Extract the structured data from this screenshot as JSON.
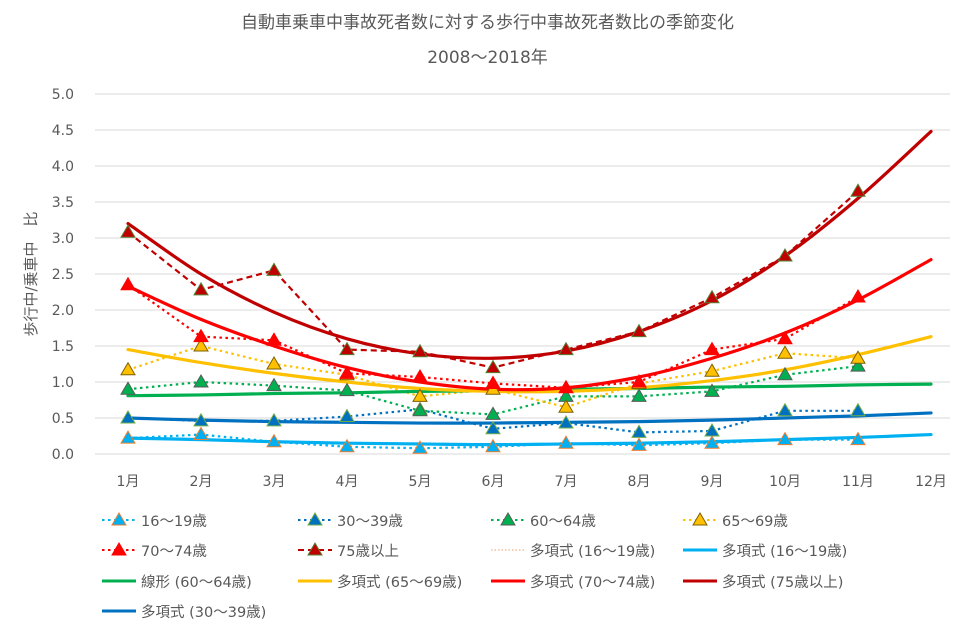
{
  "chart_data": {
    "type": "line",
    "title": "自動車乗車中事故死者数に対する歩行中事故死者数比の季節変化",
    "subtitle": "2008～2018年",
    "xlabel": "",
    "ylabel": "歩行中/乗車中　比",
    "categories": [
      "1月",
      "2月",
      "3月",
      "4月",
      "5月",
      "6月",
      "7月",
      "8月",
      "9月",
      "10月",
      "11月",
      "12月"
    ],
    "ylim": [
      0,
      5
    ],
    "yticks": [
      "0.0",
      "0.5",
      "1.0",
      "1.5",
      "2.0",
      "2.5",
      "3.0",
      "3.5",
      "4.0",
      "4.5",
      "5.0"
    ],
    "grid": true,
    "legend_position": "bottom",
    "series": [
      {
        "name": "16～19歳",
        "color": "#00b0f0",
        "marker_fill": "#00b0f0",
        "marker_edge": "#ed7d31",
        "style": "dotted",
        "values": [
          0.22,
          0.27,
          0.17,
          0.1,
          0.08,
          0.1,
          0.15,
          0.12,
          0.15,
          0.2,
          0.2,
          null
        ]
      },
      {
        "name": "30～39歳",
        "color": "#0070c0",
        "marker_fill": "#0070c0",
        "marker_edge": "#70ad47",
        "style": "dotted",
        "values": [
          0.5,
          0.46,
          0.46,
          0.52,
          0.62,
          0.35,
          0.43,
          0.3,
          0.32,
          0.6,
          0.6,
          null
        ]
      },
      {
        "name": "60～64歳",
        "color": "#00b050",
        "marker_fill": "#00b050",
        "marker_edge": "#5a5a5a",
        "style": "dotted",
        "values": [
          0.9,
          1.0,
          0.95,
          0.88,
          0.6,
          0.55,
          0.8,
          0.8,
          0.87,
          1.1,
          1.22,
          null
        ]
      },
      {
        "name": "65～69歳",
        "color": "#ffc000",
        "marker_fill": "#ffc000",
        "marker_edge": "#7f6000",
        "style": "dotted",
        "values": [
          1.17,
          1.5,
          1.25,
          1.1,
          0.8,
          0.9,
          0.65,
          0.98,
          1.15,
          1.4,
          1.33,
          null
        ]
      },
      {
        "name": "70～74歳",
        "color": "#ff0000",
        "marker_fill": "#ff0000",
        "marker_edge": "#ff0000",
        "style": "dotted",
        "values": [
          2.35,
          1.63,
          1.58,
          1.12,
          1.07,
          0.98,
          0.92,
          1.0,
          1.45,
          1.6,
          2.18,
          null
        ]
      },
      {
        "name": "75歳以上",
        "color": "#c00000",
        "marker_fill": "#c00000",
        "marker_edge": "#548235",
        "style": "dashed",
        "values": [
          3.08,
          2.28,
          2.55,
          1.45,
          1.42,
          1.2,
          1.45,
          1.7,
          2.17,
          2.75,
          3.65,
          null
        ]
      }
    ],
    "trendlines": [
      {
        "name": "多項式 (16～19歳)",
        "color": "#f4b183",
        "style": "dotted-thin",
        "values": [
          0.22,
          0.2,
          0.17,
          0.15,
          0.14,
          0.13,
          0.14,
          0.15,
          0.17,
          0.2,
          0.23,
          0.27
        ]
      },
      {
        "name": "多項式 (16～19歳)",
        "color": "#00b0f0",
        "style": "solid",
        "values": [
          0.22,
          0.2,
          0.17,
          0.15,
          0.14,
          0.13,
          0.14,
          0.15,
          0.17,
          0.2,
          0.23,
          0.27
        ]
      },
      {
        "name": "線形 (60～64歳)",
        "color": "#00b050",
        "style": "solid",
        "values": [
          0.81,
          0.82,
          0.84,
          0.85,
          0.87,
          0.88,
          0.9,
          0.91,
          0.93,
          0.94,
          0.96,
          0.97
        ]
      },
      {
        "name": "多項式 (65～69歳)",
        "color": "#ffc000",
        "style": "solid",
        "values": [
          1.45,
          1.27,
          1.12,
          1.0,
          0.91,
          0.87,
          0.87,
          0.92,
          1.02,
          1.17,
          1.38,
          1.63
        ]
      },
      {
        "name": "多項式 (70～74歳)",
        "color": "#ff0000",
        "style": "solid",
        "values": [
          2.33,
          1.87,
          1.5,
          1.2,
          1.0,
          0.9,
          0.92,
          1.07,
          1.33,
          1.68,
          2.14,
          2.7
        ]
      },
      {
        "name": "多項式 (75歳以上)",
        "color": "#c00000",
        "style": "solid",
        "values": [
          3.2,
          2.5,
          1.97,
          1.6,
          1.39,
          1.33,
          1.43,
          1.7,
          2.13,
          2.75,
          3.55,
          4.48
        ]
      },
      {
        "name": "多項式 (30～39歳)",
        "color": "#0070c0",
        "style": "solid",
        "values": [
          0.5,
          0.47,
          0.45,
          0.44,
          0.43,
          0.43,
          0.44,
          0.45,
          0.47,
          0.5,
          0.53,
          0.57
        ]
      }
    ]
  },
  "legend": [
    "16～19歳",
    "30～39歳",
    "60～64歳",
    "65～69歳",
    "70～74歳",
    "75歳以上",
    "多項式 (16～19歳)",
    "多項式 (16～19歳)",
    "線形 (60～64歳)",
    "多項式 (65～69歳)",
    "多項式 (70～74歳)",
    "多項式 (75歳以上)",
    "多項式 (30～39歳)"
  ]
}
